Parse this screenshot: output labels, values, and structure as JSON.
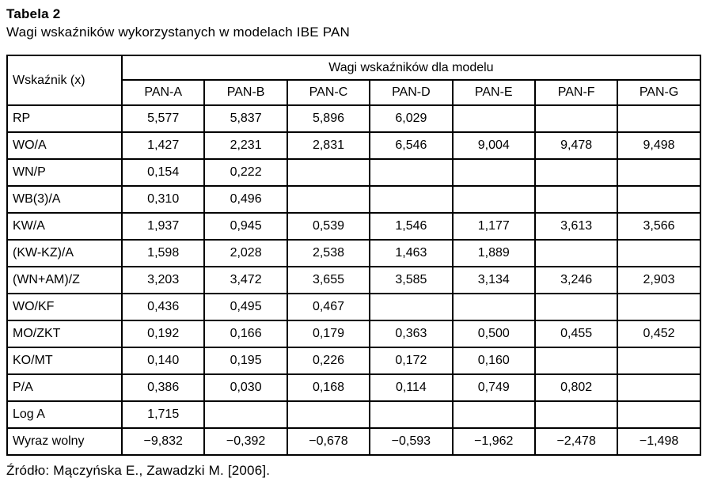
{
  "page": {
    "title": "Tabela 2",
    "subtitle": "Wagi wskaźników wykorzystanych w modelach IBE PAN",
    "source": "Źródło: Mączyńska E., Zawadzki M. [2006]."
  },
  "table": {
    "corner_header": "Wskaźnik (x)",
    "group_header": "Wagi wskaźników dla modelu",
    "model_headers": [
      "PAN-A",
      "PAN-B",
      "PAN-C",
      "PAN-D",
      "PAN-E",
      "PAN-F",
      "PAN-G"
    ],
    "rows": [
      {
        "indicator": "RP",
        "values": [
          "5,577",
          "5,837",
          "5,896",
          "6,029",
          "",
          "",
          ""
        ]
      },
      {
        "indicator": "WO/A",
        "values": [
          "1,427",
          "2,231",
          "2,831",
          "6,546",
          "9,004",
          "9,478",
          "9,498"
        ]
      },
      {
        "indicator": "WN/P",
        "values": [
          "0,154",
          "0,222",
          "",
          "",
          "",
          "",
          ""
        ]
      },
      {
        "indicator": "WB(3)/A",
        "values": [
          "0,310",
          "0,496",
          "",
          "",
          "",
          "",
          ""
        ]
      },
      {
        "indicator": "KW/A",
        "values": [
          "1,937",
          "0,945",
          "0,539",
          "1,546",
          "1,177",
          "3,613",
          "3,566"
        ]
      },
      {
        "indicator": "(KW-KZ)/A",
        "values": [
          "1,598",
          "2,028",
          "2,538",
          "1,463",
          "1,889",
          "",
          ""
        ]
      },
      {
        "indicator": "(WN+AM)/Z",
        "values": [
          "3,203",
          "3,472",
          "3,655",
          "3,585",
          "3,134",
          "3,246",
          "2,903"
        ]
      },
      {
        "indicator": "WO/KF",
        "values": [
          "0,436",
          "0,495",
          "0,467",
          "",
          "",
          "",
          ""
        ]
      },
      {
        "indicator": "MO/ZKT",
        "values": [
          "0,192",
          "0,166",
          "0,179",
          "0,363",
          "0,500",
          "0,455",
          "0,452"
        ]
      },
      {
        "indicator": "KO/MT",
        "values": [
          "0,140",
          "0,195",
          "0,226",
          "0,172",
          "0,160",
          "",
          ""
        ]
      },
      {
        "indicator": "P/A",
        "values": [
          "0,386",
          "0,030",
          "0,168",
          "0,114",
          "0,749",
          "0,802",
          ""
        ]
      },
      {
        "indicator": "Log A",
        "values": [
          "1,715",
          "",
          "",
          "",
          "",
          "",
          ""
        ]
      },
      {
        "indicator": "Wyraz wolny",
        "values": [
          "−9,832",
          "−0,392",
          "−0,678",
          "−0,593",
          "−1,962",
          "−2,478",
          "−1,498"
        ]
      }
    ]
  },
  "colors": {
    "text": "#000000",
    "background": "#ffffff",
    "border": "#000000"
  }
}
